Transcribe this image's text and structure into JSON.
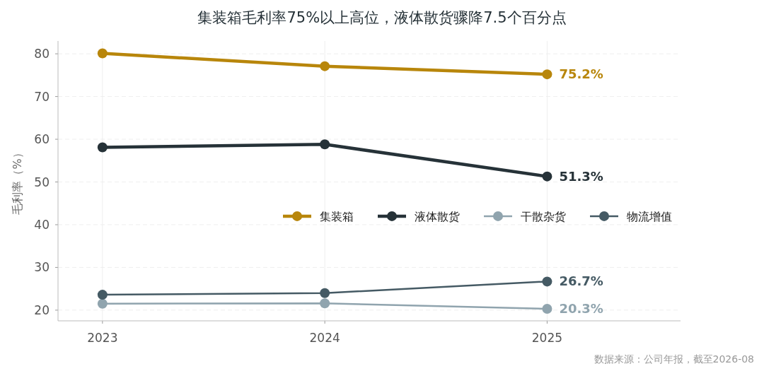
{
  "chart_data": {
    "type": "line",
    "title": "集装箱毛利率75%以上高位，液体散货骤降7.5个百分点",
    "ylabel": "毛利率（%）",
    "x": [
      2023,
      2024,
      2025
    ],
    "xlim": [
      2022.8,
      2025.6
    ],
    "xticks": [
      2023,
      2024,
      2025
    ],
    "ylim": [
      17.5,
      83
    ],
    "yticks": [
      20,
      30,
      40,
      50,
      60,
      70,
      80
    ],
    "series": [
      {
        "name": "集装箱",
        "color": "#b8860b",
        "values": [
          80.1,
          77.1,
          75.2
        ],
        "value_labels": [
          null,
          null,
          "75.2%"
        ]
      },
      {
        "name": "液体散货",
        "color": "#263238",
        "values": [
          58.1,
          58.8,
          51.3
        ],
        "value_labels": [
          null,
          null,
          "51.3%"
        ]
      },
      {
        "name": "干散杂货",
        "color": "#90a4ae",
        "values": [
          21.5,
          21.6,
          20.3
        ],
        "value_labels": [
          null,
          null,
          "20.3%"
        ]
      },
      {
        "name": "物流增值",
        "color": "#455a64",
        "values": [
          23.6,
          24.0,
          26.7
        ],
        "value_labels": [
          null,
          null,
          "26.7%"
        ]
      }
    ],
    "grid": true,
    "legend": "center right",
    "marker": "circle",
    "annotations": [
      "数据来源：公司年报，截至2026-08"
    ]
  }
}
